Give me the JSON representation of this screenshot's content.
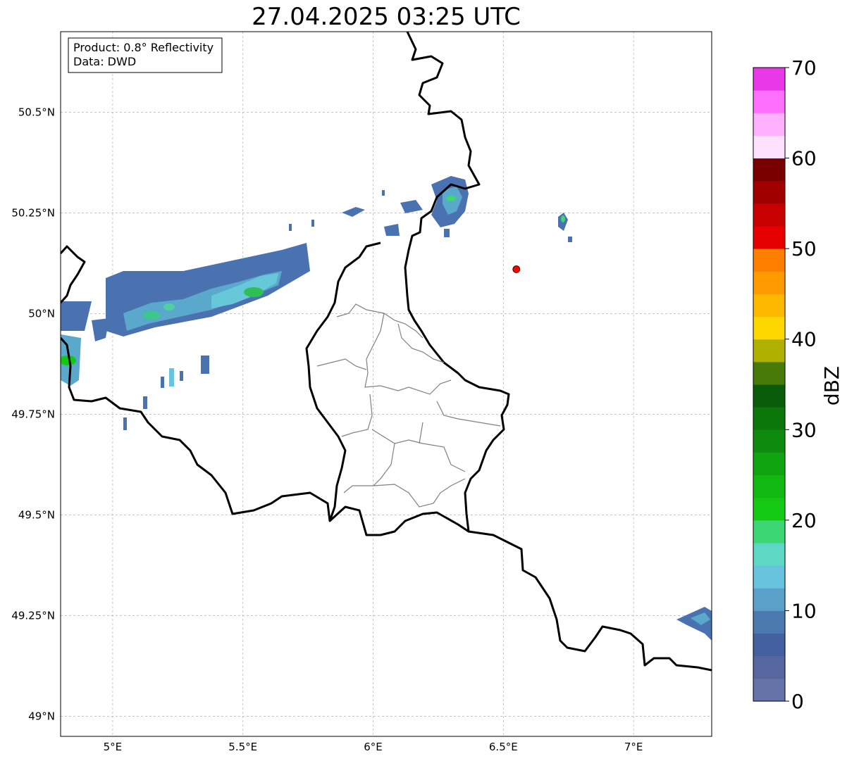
{
  "title": "27.04.2025 03:25 UTC",
  "info_box": {
    "product": "Product: 0.8° Reflectivity",
    "data": "Data: DWD"
  },
  "map": {
    "lon_range": [
      4.8,
      7.3
    ],
    "lat_range": [
      48.95,
      50.7
    ],
    "lon_ticks": [
      {
        "value": 5.0,
        "label": "5°E"
      },
      {
        "value": 5.5,
        "label": "5.5°E"
      },
      {
        "value": 6.0,
        "label": "6°E"
      },
      {
        "value": 6.5,
        "label": "6.5°E"
      },
      {
        "value": 7.0,
        "label": "7°E"
      }
    ],
    "lat_ticks": [
      {
        "value": 50.5,
        "label": "50.5°N"
      },
      {
        "value": 50.25,
        "label": "50.25°N"
      },
      {
        "value": 50.0,
        "label": "50°N"
      },
      {
        "value": 49.75,
        "label": "49.75°N"
      },
      {
        "value": 49.5,
        "label": "49.5°N"
      },
      {
        "value": 49.25,
        "label": "49.25°N"
      },
      {
        "value": 49.0,
        "label": "49°N"
      }
    ],
    "grid": true,
    "radar_site": {
      "lon": 6.55,
      "lat": 50.11,
      "color": "#ff0000"
    }
  },
  "colorbar": {
    "label": "dBZ",
    "min": 0,
    "max": 70,
    "ticks": [
      {
        "value": 0,
        "label": "0"
      },
      {
        "value": 10,
        "label": "10"
      },
      {
        "value": 20,
        "label": "20"
      },
      {
        "value": 30,
        "label": "30"
      },
      {
        "value": 40,
        "label": "40"
      },
      {
        "value": 50,
        "label": "50"
      },
      {
        "value": 60,
        "label": "60"
      },
      {
        "value": 70,
        "label": "70"
      }
    ],
    "colors": [
      "#6673a8",
      "#5667a0",
      "#4560a0",
      "#4a7ab0",
      "#5aa0c8",
      "#68c3de",
      "#5fd7c5",
      "#3dd675",
      "#14c814",
      "#12b812",
      "#11a411",
      "#0e8a0e",
      "#0c780c",
      "#095c09",
      "#477a08",
      "#b0b000",
      "#ffd700",
      "#ffb800",
      "#ff9900",
      "#ff7f00",
      "#e60000",
      "#c80000",
      "#a00000",
      "#780000",
      "#ffe0ff",
      "#ffb0ff",
      "#ff70ff",
      "#e838e8"
    ]
  }
}
